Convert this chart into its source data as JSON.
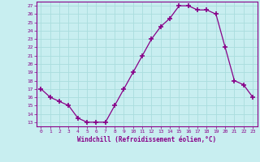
{
  "x": [
    0,
    1,
    2,
    3,
    4,
    5,
    6,
    7,
    8,
    9,
    10,
    11,
    12,
    13,
    14,
    15,
    16,
    17,
    18,
    19,
    20,
    21,
    22,
    23
  ],
  "y": [
    17,
    16,
    15.5,
    15,
    13.5,
    13,
    13,
    13,
    15,
    17,
    19,
    21,
    23,
    24.5,
    25.5,
    27,
    27,
    26.5,
    26.5,
    26,
    22,
    18,
    17.5,
    16
  ],
  "line_color": "#880088",
  "marker": "+",
  "marker_size": 4,
  "xlim": [
    -0.5,
    23.5
  ],
  "ylim": [
    12.5,
    27.5
  ],
  "yticks": [
    13,
    14,
    15,
    16,
    17,
    18,
    19,
    20,
    21,
    22,
    23,
    24,
    25,
    26,
    27
  ],
  "xticks": [
    0,
    1,
    2,
    3,
    4,
    5,
    6,
    7,
    8,
    9,
    10,
    11,
    12,
    13,
    14,
    15,
    16,
    17,
    18,
    19,
    20,
    21,
    22,
    23
  ],
  "xlabel": "Windchill (Refroidissement éolien,°C)",
  "background_color": "#c8eef0",
  "grid_color": "#aadddd",
  "spine_color": "#880088",
  "tick_color": "#880088",
  "label_color": "#880088"
}
